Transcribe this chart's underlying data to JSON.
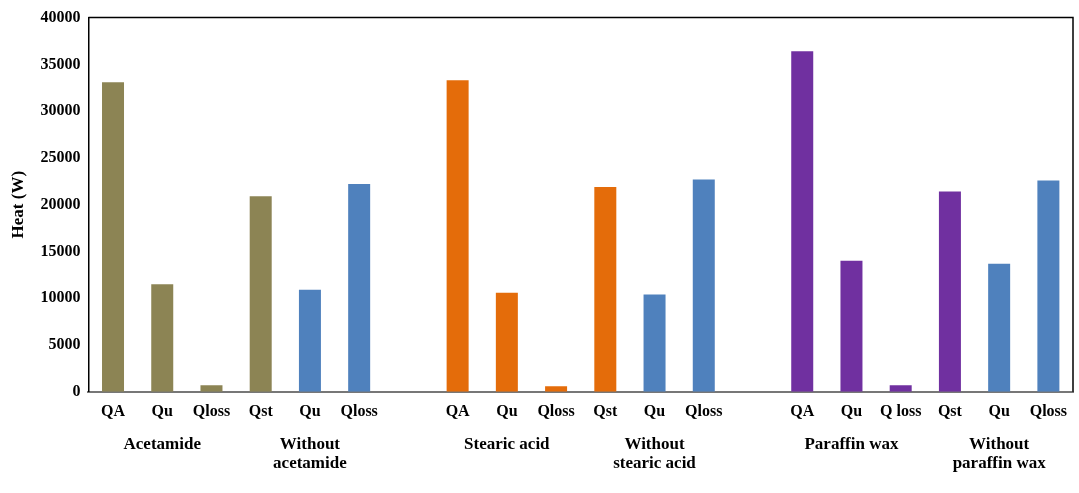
{
  "chart_data": {
    "type": "bar",
    "ylabel": "Heat (W)",
    "categories": [
      "QA",
      "Qu",
      "Qloss",
      "Qst",
      "Qu",
      "Qloss",
      null,
      "QA",
      "Qu",
      "Qloss",
      "Qst",
      "Qu",
      "Qloss",
      null,
      "QA",
      "Qu",
      "Q loss",
      "Qst",
      "Qu",
      "Qloss"
    ],
    "values": [
      33100,
      11500,
      700,
      20900,
      10900,
      22200,
      null,
      33300,
      10600,
      600,
      21900,
      10400,
      22700,
      null,
      36400,
      14000,
      700,
      21400,
      13700,
      22600
    ],
    "colors": [
      "#8c8454",
      "#8c8454",
      "#8c8454",
      "#8c8454",
      "#4f81bd",
      "#4f81bd",
      null,
      "#e46c0a",
      "#e46c0a",
      "#e46c0a",
      "#e46c0a",
      "#4f81bd",
      "#4f81bd",
      null,
      "#7030a0",
      "#7030a0",
      "#7030a0",
      "#7030a0",
      "#4f81bd",
      "#4f81bd"
    ],
    "ylim": [
      0,
      40000
    ],
    "yticks": [
      0,
      5000,
      10000,
      15000,
      20000,
      25000,
      30000,
      35000,
      40000
    ],
    "grid": false,
    "legend": false,
    "annotations": [
      "Acetamide",
      "Without acetamide",
      "Stearic acid",
      "Without stearic acid",
      "Paraffin wax",
      "Without paraffin wax"
    ]
  }
}
